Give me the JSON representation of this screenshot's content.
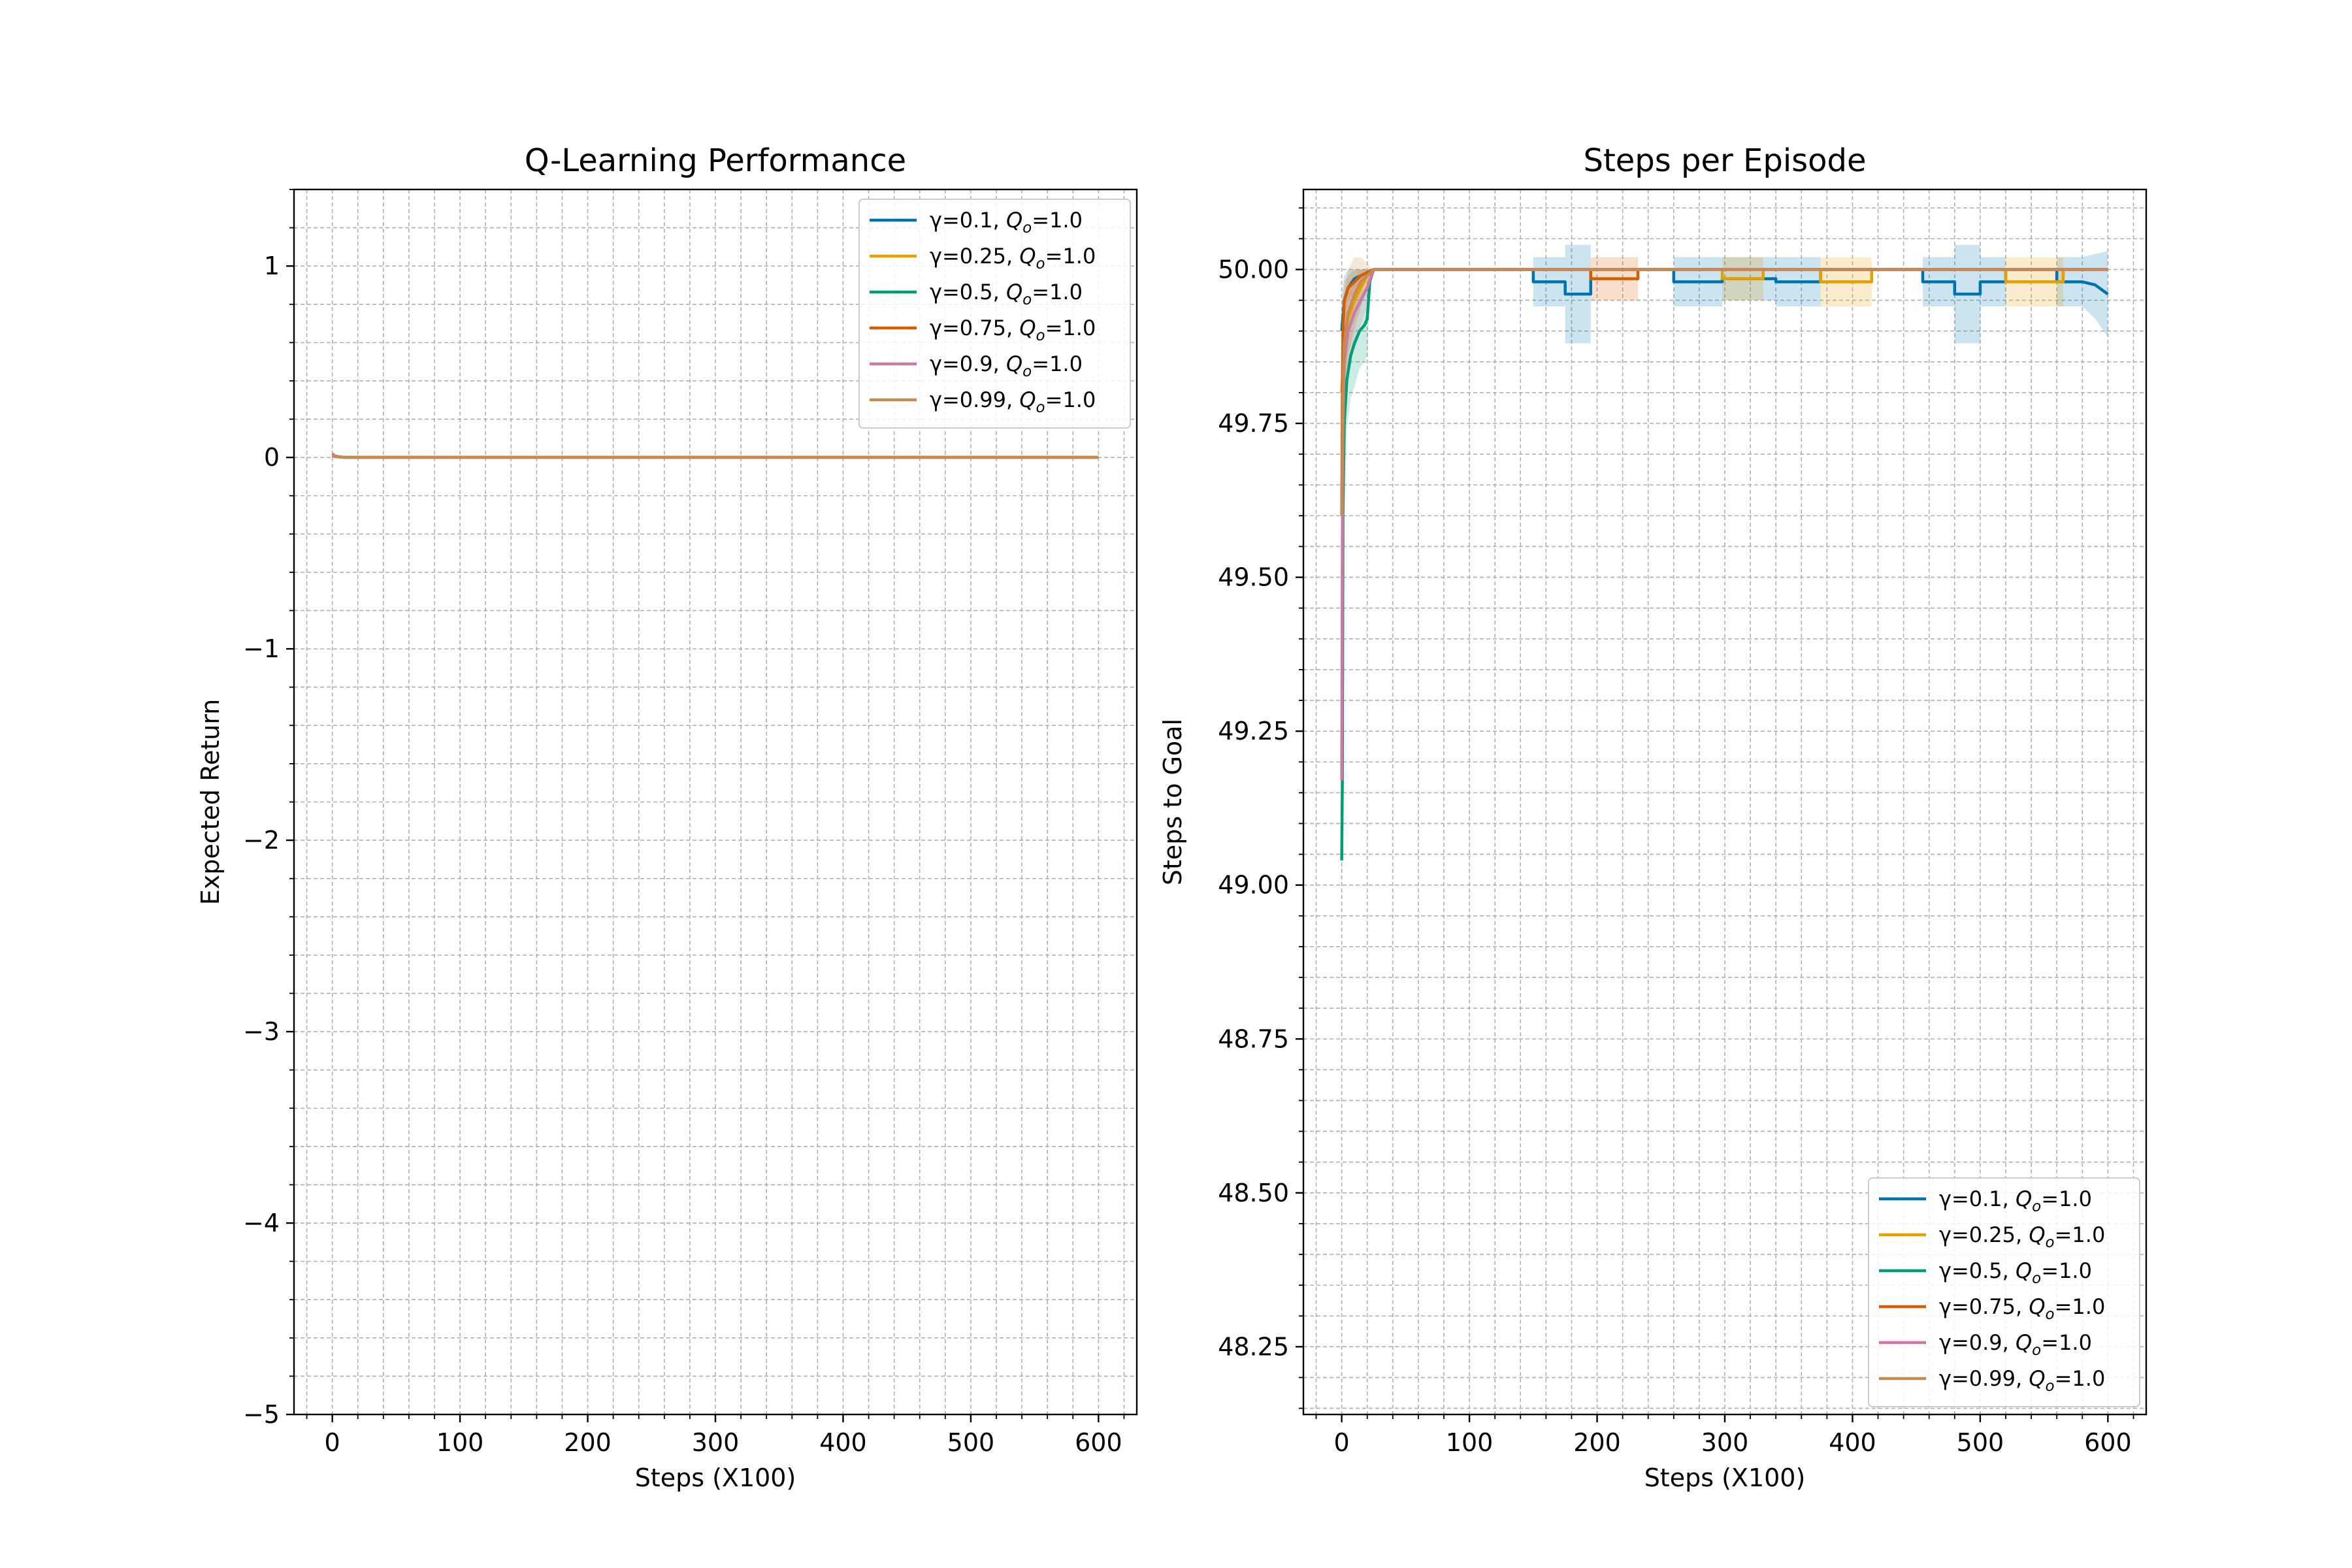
{
  "figure": {
    "background": "#ffffff"
  },
  "series_style": [
    {
      "color": "#0072b2",
      "label": "γ=0.1, ",
      "q_label": "=1.0"
    },
    {
      "color": "#e69f00",
      "label": "γ=0.25, ",
      "q_label": "=1.0"
    },
    {
      "color": "#009e73",
      "label": "γ=0.5, ",
      "q_label": "=1.0"
    },
    {
      "color": "#d55e00",
      "label": "γ=0.75, ",
      "q_label": "=1.0"
    },
    {
      "color": "#cc79a7",
      "label": "γ=0.9, ",
      "q_label": "=1.0"
    },
    {
      "color": "#c68a55",
      "label": "γ=0.99, ",
      "q_label": "=1.0"
    }
  ],
  "q_symbol": {
    "base": "Q",
    "sub": "o"
  },
  "chart_data": [
    {
      "type": "line",
      "title": "Q-Learning Performance",
      "xlabel": "Steps (X100)",
      "ylabel": "Expected Return",
      "xlim": [
        -30,
        630
      ],
      "ylim": [
        -5,
        1.4
      ],
      "xticks": [
        0,
        100,
        200,
        300,
        400,
        500,
        600
      ],
      "yticks": [
        -5,
        -4,
        -3,
        -2,
        -1,
        0,
        1
      ],
      "ytick_labels": [
        "−5",
        "−4",
        "−3",
        "−2",
        "−1",
        "0",
        "1"
      ],
      "legend_position": "upper right",
      "grid": true,
      "series": [
        {
          "style": 0,
          "x": [
            0,
            2,
            5,
            10,
            600
          ],
          "y": [
            0.01,
            0.005,
            0.003,
            0.0,
            0.0
          ]
        },
        {
          "style": 1,
          "x": [
            0,
            2,
            5,
            10,
            600
          ],
          "y": [
            0.01,
            0.005,
            0.003,
            0.0,
            0.0
          ]
        },
        {
          "style": 2,
          "x": [
            0,
            2,
            5,
            10,
            600
          ],
          "y": [
            0.01,
            0.005,
            0.003,
            0.0,
            0.0
          ]
        },
        {
          "style": 3,
          "x": [
            0,
            2,
            5,
            10,
            600
          ],
          "y": [
            0.01,
            0.005,
            0.003,
            0.0,
            0.0
          ]
        },
        {
          "style": 4,
          "x": [
            0,
            2,
            5,
            10,
            600
          ],
          "y": [
            0.01,
            0.005,
            0.003,
            0.0,
            0.0
          ]
        },
        {
          "style": 5,
          "x": [
            0,
            2,
            5,
            10,
            600
          ],
          "y": [
            0.02,
            0.008,
            0.004,
            0.0,
            0.0
          ]
        }
      ]
    },
    {
      "type": "line",
      "title": "Steps per Episode",
      "xlabel": "Steps (X100)",
      "ylabel": "Steps to Goal",
      "xlim": [
        -30,
        630
      ],
      "ylim": [
        48.14,
        50.13
      ],
      "xticks": [
        0,
        100,
        200,
        300,
        400,
        500,
        600
      ],
      "yticks": [
        48.25,
        48.5,
        48.75,
        49.0,
        49.25,
        49.5,
        49.75,
        50.0
      ],
      "ytick_labels": [
        "48.25",
        "48.50",
        "48.75",
        "49.00",
        "49.25",
        "49.50",
        "49.75",
        "50.00"
      ],
      "legend_position": "lower right",
      "grid": true,
      "series": [
        {
          "style": 0,
          "x": [
            0,
            2,
            5,
            10,
            15,
            20,
            25,
            30,
            150,
            150,
            175,
            175,
            195,
            195,
            260,
            260,
            298,
            298,
            340,
            340,
            375,
            375,
            455,
            455,
            480,
            480,
            500,
            500,
            520,
            520,
            560,
            560,
            580,
            590,
            600
          ],
          "y": [
            49.9,
            49.95,
            49.97,
            49.985,
            49.99,
            49.995,
            50.0,
            50.0,
            50.0,
            49.98,
            49.98,
            49.96,
            49.96,
            50.0,
            50.0,
            49.98,
            49.98,
            49.985,
            49.985,
            49.98,
            49.98,
            50.0,
            50.0,
            49.98,
            49.98,
            49.96,
            49.96,
            49.98,
            49.98,
            50.0,
            50.0,
            49.98,
            49.98,
            49.975,
            49.96
          ],
          "band_upper": [
            49.96,
            49.99,
            50.0,
            50.0,
            50.0,
            50.0,
            50.0,
            50.0,
            50.0,
            50.02,
            50.02,
            50.04,
            50.04,
            50.0,
            50.0,
            50.02,
            50.02,
            50.02,
            50.02,
            50.02,
            50.02,
            50.0,
            50.0,
            50.02,
            50.02,
            50.04,
            50.04,
            50.02,
            50.02,
            50.0,
            50.0,
            50.02,
            50.02,
            50.025,
            50.03
          ],
          "band_lower": [
            49.84,
            49.91,
            49.94,
            49.97,
            49.98,
            49.99,
            50.0,
            50.0,
            50.0,
            49.94,
            49.94,
            49.88,
            49.88,
            50.0,
            50.0,
            49.94,
            49.94,
            49.95,
            49.95,
            49.94,
            49.94,
            50.0,
            50.0,
            49.94,
            49.94,
            49.88,
            49.88,
            49.94,
            49.94,
            50.0,
            50.0,
            49.94,
            49.94,
            49.92,
            49.89
          ]
        },
        {
          "style": 1,
          "x": [
            0,
            2,
            5,
            10,
            15,
            20,
            25,
            30,
            298,
            298,
            330,
            330,
            375,
            375,
            415,
            415,
            520,
            520,
            565,
            565,
            600
          ],
          "y": [
            49.8,
            49.88,
            49.92,
            49.95,
            49.97,
            49.99,
            50.0,
            50.0,
            50.0,
            49.985,
            49.985,
            50.0,
            50.0,
            49.98,
            49.98,
            50.0,
            50.0,
            49.98,
            49.98,
            50.0,
            50.0
          ],
          "band_upper": [
            49.9,
            49.95,
            49.98,
            49.99,
            50.0,
            50.0,
            50.0,
            50.0,
            50.0,
            50.02,
            50.02,
            50.0,
            50.0,
            50.02,
            50.02,
            50.0,
            50.0,
            50.02,
            50.02,
            50.0,
            50.0
          ],
          "band_lower": [
            49.7,
            49.81,
            49.86,
            49.91,
            49.94,
            49.98,
            50.0,
            50.0,
            50.0,
            49.95,
            49.95,
            50.0,
            50.0,
            49.94,
            49.94,
            50.0,
            50.0,
            49.94,
            49.94,
            50.0,
            50.0
          ]
        },
        {
          "style": 2,
          "x": [
            0,
            0.5,
            1,
            2,
            4,
            7,
            10,
            14,
            18,
            20,
            22,
            25,
            30,
            600
          ],
          "y": [
            49.04,
            49.17,
            49.6,
            49.75,
            49.82,
            49.86,
            49.88,
            49.9,
            49.91,
            49.92,
            49.98,
            50.0,
            50.0,
            50.0
          ],
          "band_upper": [
            49.1,
            49.25,
            49.7,
            49.85,
            49.9,
            49.93,
            49.95,
            49.96,
            49.97,
            49.98,
            50.0,
            50.0,
            50.0,
            50.0
          ],
          "band_lower": [
            48.98,
            49.09,
            49.5,
            49.65,
            49.74,
            49.79,
            49.81,
            49.84,
            49.85,
            49.86,
            49.96,
            50.0,
            50.0,
            50.0
          ]
        },
        {
          "style": 3,
          "x": [
            0,
            0.5,
            1,
            2,
            5,
            10,
            15,
            20,
            25,
            30,
            195,
            195,
            232,
            232,
            600
          ],
          "y": [
            49.6,
            49.8,
            49.9,
            49.95,
            49.97,
            49.98,
            49.99,
            49.995,
            50.0,
            50.0,
            50.0,
            49.985,
            49.985,
            50.0,
            50.0
          ],
          "band_upper": [
            49.7,
            49.88,
            49.95,
            49.98,
            49.99,
            50.0,
            50.0,
            50.0,
            50.0,
            50.0,
            50.0,
            50.02,
            50.02,
            50.0,
            50.0
          ],
          "band_lower": [
            49.5,
            49.72,
            49.85,
            49.92,
            49.95,
            49.96,
            49.98,
            49.99,
            50.0,
            50.0,
            50.0,
            49.95,
            49.95,
            50.0,
            50.0
          ]
        },
        {
          "style": 4,
          "x": [
            0,
            0.5,
            1,
            2,
            5,
            10,
            15,
            20,
            25,
            30,
            600
          ],
          "y": [
            49.17,
            49.56,
            49.75,
            49.85,
            49.9,
            49.93,
            49.95,
            49.97,
            50.0,
            50.0,
            50.0
          ],
          "band_upper": [
            49.25,
            49.66,
            49.85,
            49.93,
            49.96,
            49.98,
            49.99,
            50.0,
            50.0,
            50.0,
            50.0
          ],
          "band_lower": [
            49.09,
            49.46,
            49.65,
            49.77,
            49.84,
            49.88,
            49.91,
            49.94,
            50.0,
            50.0,
            50.0
          ]
        },
        {
          "style": 5,
          "x": [
            0,
            0.5,
            1,
            2,
            5,
            10,
            15,
            20,
            25,
            30,
            600
          ],
          "y": [
            49.6,
            49.7,
            49.8,
            49.88,
            49.93,
            49.96,
            49.98,
            49.99,
            50.0,
            50.0,
            50.0
          ],
          "band_upper": [
            49.7,
            49.8,
            49.9,
            49.96,
            50.0,
            50.02,
            50.02,
            50.01,
            50.0,
            50.0,
            50.0
          ],
          "band_lower": [
            49.5,
            49.6,
            49.7,
            49.8,
            49.86,
            49.9,
            49.94,
            49.97,
            50.0,
            50.0,
            50.0
          ]
        }
      ]
    }
  ]
}
